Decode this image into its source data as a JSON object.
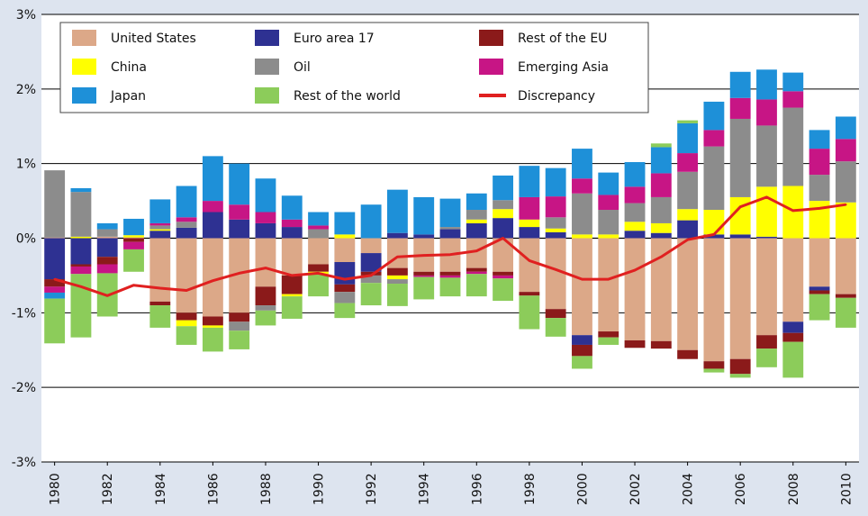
{
  "chart_data": {
    "type": "bar",
    "subtype": "stacked-bar-with-line",
    "title": "",
    "xlabel": "",
    "ylabel": "",
    "ylim": [
      -3,
      3
    ],
    "yticks": [
      -3,
      -2,
      -1,
      0,
      1,
      2,
      3
    ],
    "ytick_labels": [
      "-3%",
      "-2%",
      "-1%",
      "0%",
      "1%",
      "2%",
      "3%"
    ],
    "xtick_labels": [
      "1980",
      "1982",
      "1984",
      "1986",
      "1988",
      "1990",
      "1992",
      "1994",
      "1996",
      "1998",
      "2000",
      "2002",
      "2004",
      "2006",
      "2008",
      "2010"
    ],
    "grid": "horizontal",
    "legend_position": "top-left inside plot",
    "categories": [
      "1980",
      "1981",
      "1982",
      "1983",
      "1984",
      "1985",
      "1986",
      "1987",
      "1988",
      "1989",
      "1990",
      "1991",
      "1992",
      "1993",
      "1994",
      "1995",
      "1996",
      "1997",
      "1998",
      "1999",
      "2000",
      "2001",
      "2002",
      "2003",
      "2004",
      "2005",
      "2006",
      "2007",
      "2008",
      "2009",
      "2010"
    ],
    "series": [
      {
        "name": "United States",
        "color": "#dca888",
        "values": [
          0.01,
          0.0,
          0.02,
          0.01,
          -0.85,
          -1.0,
          -1.05,
          -1.0,
          -0.65,
          -0.5,
          -0.35,
          -0.32,
          -0.2,
          -0.4,
          -0.45,
          -0.45,
          -0.4,
          -0.45,
          -0.72,
          -0.95,
          -1.3,
          -1.25,
          -1.37,
          -1.38,
          -1.5,
          -1.65,
          -1.62,
          -1.3,
          -1.12,
          -0.65,
          -0.75
        ]
      },
      {
        "name": "Euro area 17",
        "color": "#2e3192",
        "values": [
          -0.55,
          -0.35,
          -0.25,
          0.0,
          0.1,
          0.14,
          0.35,
          0.25,
          0.2,
          0.15,
          0.0,
          -0.3,
          -0.25,
          0.07,
          0.05,
          0.12,
          0.2,
          0.27,
          0.15,
          0.08,
          -0.13,
          0.0,
          0.1,
          0.07,
          0.24,
          0.05,
          0.05,
          0.02,
          -0.15,
          -0.05,
          0.0
        ]
      },
      {
        "name": "Rest of the EU",
        "color": "#8b1a1a",
        "values": [
          -0.1,
          -0.03,
          -0.1,
          -0.05,
          -0.05,
          -0.1,
          -0.12,
          -0.12,
          -0.25,
          -0.25,
          -0.1,
          -0.1,
          -0.05,
          -0.1,
          -0.05,
          -0.05,
          -0.05,
          -0.05,
          -0.05,
          -0.12,
          -0.15,
          -0.08,
          -0.1,
          -0.1,
          -0.12,
          -0.1,
          -0.2,
          -0.18,
          -0.12,
          -0.05,
          -0.05
        ]
      },
      {
        "name": "China",
        "color": "#ffff00",
        "values": [
          0.0,
          0.02,
          0.0,
          0.03,
          0.02,
          -0.08,
          -0.03,
          0.0,
          0.0,
          -0.03,
          -0.03,
          0.05,
          0.0,
          -0.05,
          0.0,
          0.0,
          0.05,
          0.12,
          0.1,
          0.05,
          0.05,
          0.05,
          0.12,
          0.13,
          0.15,
          0.33,
          0.5,
          0.67,
          0.7,
          0.5,
          0.48
        ]
      },
      {
        "name": "Oil",
        "color": "#8c8c8c",
        "values": [
          0.9,
          0.6,
          0.1,
          0.0,
          0.05,
          0.08,
          0.0,
          -0.12,
          -0.07,
          0.0,
          0.12,
          -0.15,
          -0.1,
          -0.06,
          0.0,
          0.03,
          0.13,
          0.12,
          0.0,
          0.15,
          0.55,
          0.33,
          0.25,
          0.35,
          0.5,
          0.85,
          1.05,
          0.82,
          1.05,
          0.35,
          0.55
        ]
      },
      {
        "name": "Emerging Asia",
        "color": "#c71585",
        "values": [
          -0.08,
          -0.1,
          -0.12,
          -0.1,
          0.03,
          0.06,
          0.15,
          0.2,
          0.15,
          0.1,
          0.05,
          0.0,
          0.0,
          0.0,
          -0.02,
          -0.03,
          -0.03,
          -0.04,
          0.3,
          0.28,
          0.2,
          0.2,
          0.22,
          0.32,
          0.25,
          0.22,
          0.28,
          0.35,
          0.22,
          0.35,
          0.3
        ]
      },
      {
        "name": "Japan",
        "color": "#1e90d8",
        "values": [
          -0.08,
          0.05,
          0.08,
          0.22,
          0.32,
          0.42,
          0.6,
          0.55,
          0.45,
          0.32,
          0.18,
          0.3,
          0.45,
          0.58,
          0.5,
          0.38,
          0.22,
          0.33,
          0.42,
          0.38,
          0.4,
          0.3,
          0.33,
          0.35,
          0.4,
          0.38,
          0.35,
          0.4,
          0.25,
          0.25,
          0.3
        ]
      },
      {
        "name": "Rest of the world",
        "color": "#8ccc5a",
        "values": [
          -0.6,
          -0.85,
          -0.58,
          -0.3,
          -0.3,
          -0.25,
          -0.32,
          -0.25,
          -0.2,
          -0.3,
          -0.3,
          -0.2,
          -0.3,
          -0.3,
          -0.3,
          -0.25,
          -0.3,
          -0.3,
          -0.45,
          -0.25,
          -0.17,
          -0.1,
          0.0,
          0.05,
          0.04,
          -0.05,
          -0.05,
          -0.25,
          -0.48,
          -0.35,
          -0.4
        ]
      }
    ],
    "line": {
      "name": "Discrepancy",
      "color": "#e02020",
      "values": [
        -0.55,
        -0.65,
        -0.77,
        -0.63,
        -0.67,
        -0.7,
        -0.57,
        -0.47,
        -0.4,
        -0.5,
        -0.47,
        -0.55,
        -0.5,
        -0.25,
        -0.23,
        -0.22,
        -0.17,
        0.0,
        -0.3,
        -0.42,
        -0.55,
        -0.55,
        -0.43,
        -0.25,
        -0.02,
        0.05,
        0.42,
        0.55,
        0.37,
        0.4,
        0.45
      ]
    }
  },
  "legend": {
    "items": [
      {
        "label": "United States",
        "color": "#dca888",
        "kind": "box"
      },
      {
        "label": "Euro area 17",
        "color": "#2e3192",
        "kind": "box"
      },
      {
        "label": "Rest of the EU",
        "color": "#8b1a1a",
        "kind": "box"
      },
      {
        "label": "China",
        "color": "#ffff00",
        "kind": "box"
      },
      {
        "label": "Oil",
        "color": "#8c8c8c",
        "kind": "box"
      },
      {
        "label": "Emerging Asia",
        "color": "#c71585",
        "kind": "box"
      },
      {
        "label": "Japan",
        "color": "#1e90d8",
        "kind": "box"
      },
      {
        "label": "Rest of the world",
        "color": "#8ccc5a",
        "kind": "box"
      },
      {
        "label": "Discrepancy",
        "color": "#e02020",
        "kind": "line"
      }
    ]
  },
  "colors": {
    "background": "#dde4ef",
    "plot_background": "#ffffff",
    "gridline": "#000000"
  }
}
